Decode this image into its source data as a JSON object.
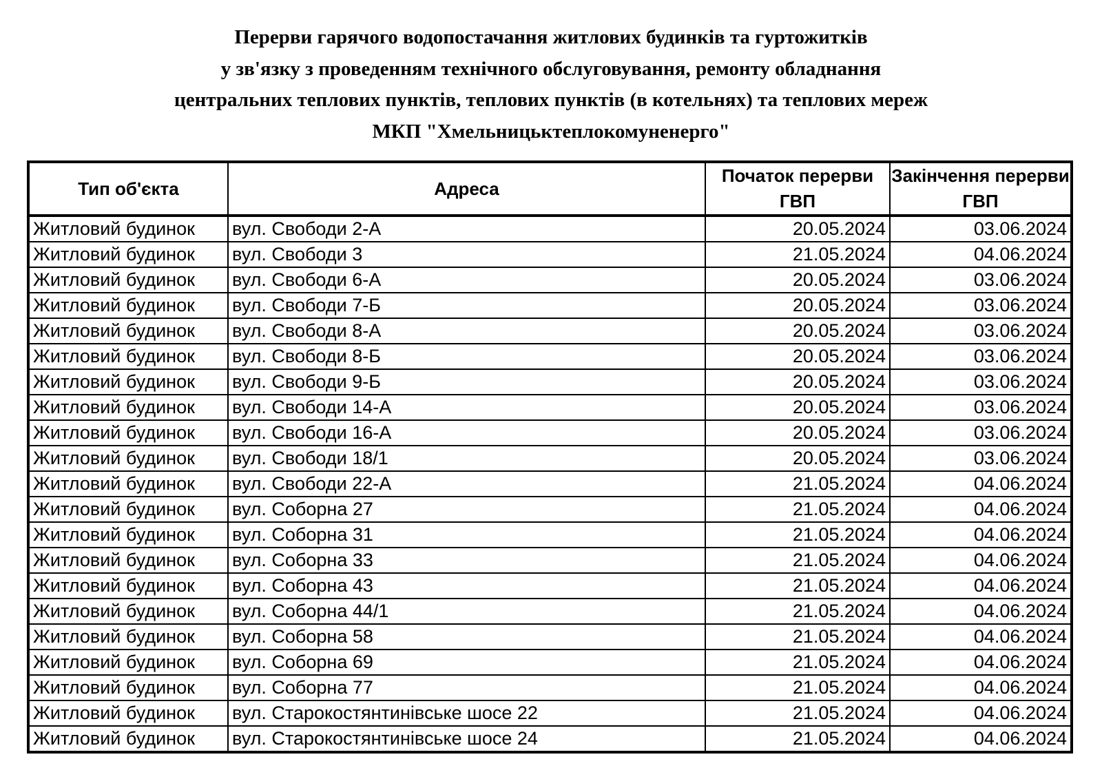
{
  "title": [
    "Перерви гарячого водопостачання житлових будинків та гуртожитків",
    "у зв'язку з проведенням технічного обслуговування, ремонту обладнання",
    "центральних теплових пунктів, теплових пунктів (в котельнях) та теплових мереж",
    "МКП  \"Хмельницьктеплокомуненерго\""
  ],
  "headers": [
    "Тип об'єкта",
    "Адреса",
    "Початок перерви ГВП",
    "Закінчення перерви ГВП"
  ],
  "rows": [
    [
      "Житловий будинок",
      "вул. Свободи 2-А",
      "20.05.2024",
      "03.06.2024"
    ],
    [
      "Житловий будинок",
      "вул. Свободи 3",
      "21.05.2024",
      "04.06.2024"
    ],
    [
      "Житловий будинок",
      "вул. Свободи 6-А",
      "20.05.2024",
      "03.06.2024"
    ],
    [
      "Житловий будинок",
      "вул. Свободи 7-Б",
      "20.05.2024",
      "03.06.2024"
    ],
    [
      "Житловий будинок",
      "вул. Свободи 8-А",
      "20.05.2024",
      "03.06.2024"
    ],
    [
      "Житловий будинок",
      "вул. Свободи 8-Б",
      "20.05.2024",
      "03.06.2024"
    ],
    [
      "Житловий будинок",
      "вул. Свободи 9-Б",
      "20.05.2024",
      "03.06.2024"
    ],
    [
      "Житловий будинок",
      "вул. Свободи 14-А",
      "20.05.2024",
      "03.06.2024"
    ],
    [
      "Житловий будинок",
      "вул. Свободи 16-А",
      "20.05.2024",
      "03.06.2024"
    ],
    [
      "Житловий будинок",
      "вул. Свободи 18/1",
      "20.05.2024",
      "03.06.2024"
    ],
    [
      "Житловий будинок",
      "вул. Свободи 22-А",
      "21.05.2024",
      "04.06.2024"
    ],
    [
      "Житловий будинок",
      "вул. Соборна 27",
      "21.05.2024",
      "04.06.2024"
    ],
    [
      "Житловий будинок",
      "вул. Соборна 31",
      "21.05.2024",
      "04.06.2024"
    ],
    [
      "Житловий будинок",
      "вул. Соборна 33",
      "21.05.2024",
      "04.06.2024"
    ],
    [
      "Житловий будинок",
      "вул. Соборна 43",
      "21.05.2024",
      "04.06.2024"
    ],
    [
      "Житловий будинок",
      "вул. Соборна 44/1",
      "21.05.2024",
      "04.06.2024"
    ],
    [
      "Житловий будинок",
      "вул. Соборна 58",
      "21.05.2024",
      "04.06.2024"
    ],
    [
      "Житловий будинок",
      "вул. Соборна 69",
      "21.05.2024",
      "04.06.2024"
    ],
    [
      "Житловий будинок",
      "вул. Соборна 77",
      "21.05.2024",
      "04.06.2024"
    ],
    [
      "Житловий будинок",
      "вул. Старокостянтинівське шосе 22",
      "21.05.2024",
      "04.06.2024"
    ],
    [
      "Житловий будинок",
      "вул. Старокостянтинівське шосе 24",
      "21.05.2024",
      "04.06.2024"
    ]
  ]
}
